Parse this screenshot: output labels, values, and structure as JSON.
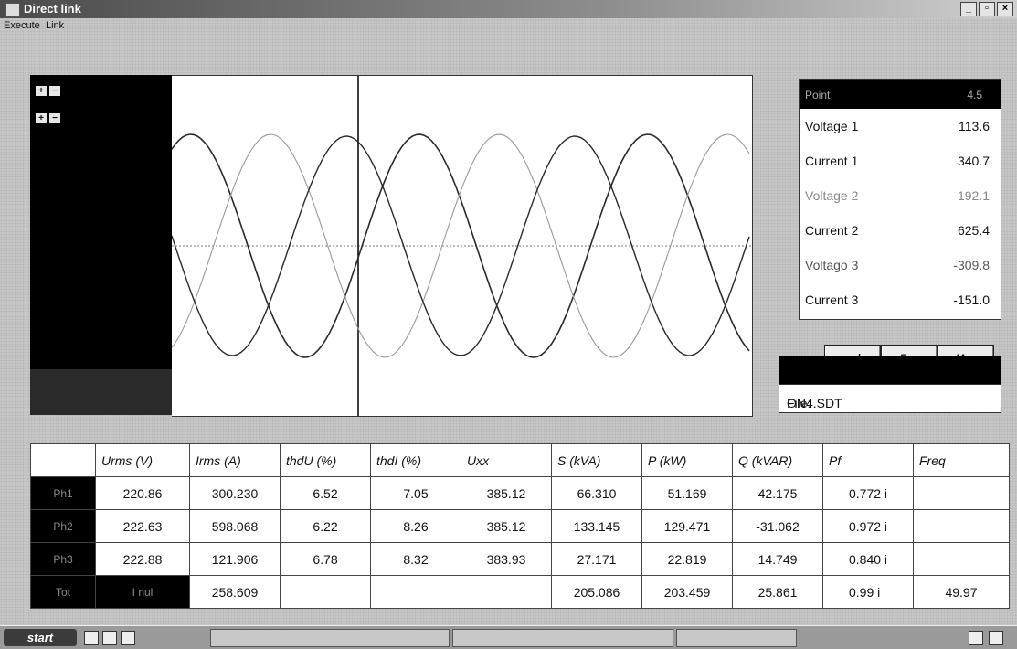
{
  "window": {
    "title": "Direct link"
  },
  "menu": [
    "Execute",
    "Link"
  ],
  "readings": {
    "header_name": "Point",
    "header_value": "4.5",
    "rows": [
      {
        "name": "Voltage 1",
        "value": "113.6"
      },
      {
        "name": "Current 1",
        "value": "340.7"
      },
      {
        "name": "Voltage 2",
        "value": "192.1"
      },
      {
        "name": "Current 2",
        "value": "625.4"
      },
      {
        "name": "Voltago 3",
        "value": "-309.8"
      },
      {
        "name": "Current 3",
        "value": "-151.0"
      }
    ]
  },
  "unit_buttons": [
    "gol",
    "Eng",
    "Mag"
  ],
  "file": {
    "label": "File:",
    "name": "ON4.SDT"
  },
  "table": {
    "headers": [
      "",
      "Urms (V)",
      "Irms (A)",
      "thdU (%)",
      "thdI (%)",
      "Uxx",
      "S (kVA)",
      "P (kW)",
      "Q (kVAR)",
      "Pf",
      "Freq"
    ],
    "rows": [
      [
        "Ph1",
        "220.86",
        "300.230",
        "6.52",
        "7.05",
        "385.12",
        "66.310",
        "51.169",
        "42.175",
        "0.772  i",
        ""
      ],
      [
        "Ph2",
        "222.63",
        "598.068",
        "6.22",
        "8.26",
        "385.12",
        "133.145",
        "129.471",
        "-31.062",
        "0.972  i",
        ""
      ],
      [
        "Ph3",
        "222.88",
        "121.906",
        "6.78",
        "8.32",
        "383.93",
        "27.171",
        "22.819",
        "14.749",
        "0.840  i",
        ""
      ],
      [
        "Tot",
        "I nul",
        "258.609",
        "",
        "",
        "",
        "205.086",
        "203.459",
        "25.861",
        "0.99  i",
        "49.97"
      ]
    ]
  },
  "taskbar": {
    "start": "start"
  },
  "colors": {
    "trace_dark": "#2a2a2a",
    "trace_light": "#9a9a9a",
    "panel": "#000000"
  }
}
